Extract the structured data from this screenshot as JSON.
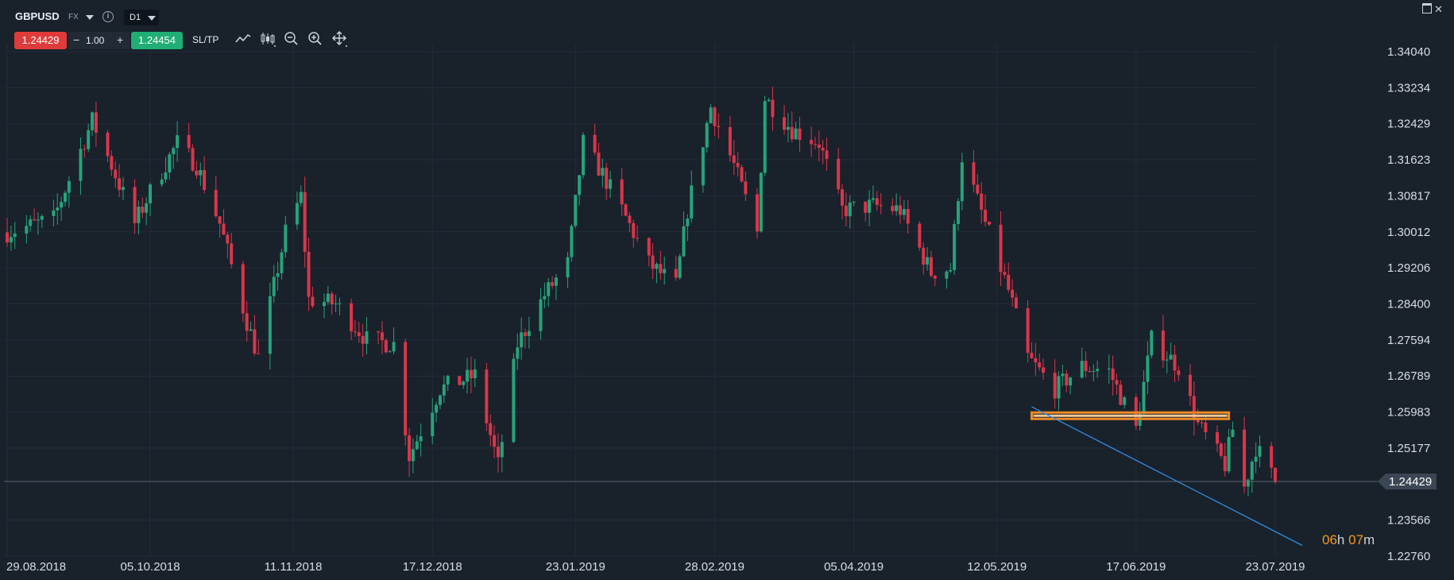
{
  "header": {
    "symbol": "GBPUSD",
    "market": "FX",
    "timeframe": "D1",
    "sell_price": "1.24429",
    "quantity": "1.00",
    "minus_label": "−",
    "plus_label": "+",
    "buy_price": "1.24454",
    "sltp_label": "SL/TP",
    "close_label": "✕"
  },
  "timer": {
    "hours": "06",
    "hours_unit": "h",
    "minutes": "07",
    "minutes_unit": "m"
  },
  "colors": {
    "up": "#26a37a",
    "down": "#d9364b",
    "background": "#19212b",
    "grid": "#232d38",
    "support": "#f08a24",
    "trendline": "#2b8fe8",
    "price_line": "#5c6773"
  },
  "chart_data": {
    "type": "candlestick",
    "symbol": "GBPUSD",
    "timeframe": "D1",
    "ylim": [
      1.2276,
      1.3404
    ],
    "y_ticks": [
      "1.34040",
      "1.33234",
      "1.32429",
      "1.31623",
      "1.30817",
      "1.30012",
      "1.29206",
      "1.28400",
      "1.27594",
      "1.26789",
      "1.25983",
      "1.25177",
      "1.24429",
      "1.23566",
      "1.22760"
    ],
    "x_ticks": [
      "29.08.2018",
      "05.10.2018",
      "11.11.2018",
      "17.12.2018",
      "23.01.2019",
      "28.02.2019",
      "05.04.2019",
      "12.05.2019",
      "17.06.2019",
      "23.07.2019"
    ],
    "x_range": [
      "2018-08-29",
      "2019-07-23"
    ],
    "current_price": "1.24429",
    "closes": [
      {
        "date": "2018-08-29",
        "close": 1.3
      },
      {
        "date": "2018-09-10",
        "close": 1.303
      },
      {
        "date": "2018-09-20",
        "close": 1.325
      },
      {
        "date": "2018-09-25",
        "close": 1.315
      },
      {
        "date": "2018-10-01",
        "close": 1.302
      },
      {
        "date": "2018-10-05",
        "close": 1.309
      },
      {
        "date": "2018-10-12",
        "close": 1.32
      },
      {
        "date": "2018-10-17",
        "close": 1.315
      },
      {
        "date": "2018-10-23",
        "close": 1.302
      },
      {
        "date": "2018-10-30",
        "close": 1.28
      },
      {
        "date": "2018-11-02",
        "close": 1.272
      },
      {
        "date": "2018-11-09",
        "close": 1.3
      },
      {
        "date": "2018-11-13",
        "close": 1.308
      },
      {
        "date": "2018-11-15",
        "close": 1.285
      },
      {
        "date": "2018-11-22",
        "close": 1.284
      },
      {
        "date": "2018-11-30",
        "close": 1.276
      },
      {
        "date": "2018-12-07",
        "close": 1.275
      },
      {
        "date": "2018-12-11",
        "close": 1.25
      },
      {
        "date": "2018-12-19",
        "close": 1.265
      },
      {
        "date": "2018-12-28",
        "close": 1.268
      },
      {
        "date": "2019-01-03",
        "close": 1.248
      },
      {
        "date": "2019-01-08",
        "close": 1.275
      },
      {
        "date": "2019-01-15",
        "close": 1.286
      },
      {
        "date": "2019-01-21",
        "close": 1.293
      },
      {
        "date": "2019-01-25",
        "close": 1.32
      },
      {
        "date": "2019-01-30",
        "close": 1.313
      },
      {
        "date": "2019-02-04",
        "close": 1.305
      },
      {
        "date": "2019-02-11",
        "close": 1.293
      },
      {
        "date": "2019-02-18",
        "close": 1.288
      },
      {
        "date": "2019-02-21",
        "close": 1.305
      },
      {
        "date": "2019-02-27",
        "close": 1.328
      },
      {
        "date": "2019-03-05",
        "close": 1.315
      },
      {
        "date": "2019-03-11",
        "close": 1.3
      },
      {
        "date": "2019-03-13",
        "close": 1.33
      },
      {
        "date": "2019-03-20",
        "close": 1.323
      },
      {
        "date": "2019-03-27",
        "close": 1.32
      },
      {
        "date": "2019-04-02",
        "close": 1.305
      },
      {
        "date": "2019-04-10",
        "close": 1.306
      },
      {
        "date": "2019-04-17",
        "close": 1.305
      },
      {
        "date": "2019-04-25",
        "close": 1.291
      },
      {
        "date": "2019-04-30",
        "close": 1.292
      },
      {
        "date": "2019-05-03",
        "close": 1.317
      },
      {
        "date": "2019-05-09",
        "close": 1.302
      },
      {
        "date": "2019-05-15",
        "close": 1.287
      },
      {
        "date": "2019-05-20",
        "close": 1.272
      },
      {
        "date": "2019-05-27",
        "close": 1.265
      },
      {
        "date": "2019-06-03",
        "close": 1.27
      },
      {
        "date": "2019-06-10",
        "close": 1.269
      },
      {
        "date": "2019-06-17",
        "close": 1.256
      },
      {
        "date": "2019-06-21",
        "close": 1.276
      },
      {
        "date": "2019-06-28",
        "close": 1.27
      },
      {
        "date": "2019-07-03",
        "close": 1.257
      },
      {
        "date": "2019-07-10",
        "close": 1.248
      },
      {
        "date": "2019-07-12",
        "close": 1.256
      },
      {
        "date": "2019-07-15",
        "close": 1.243
      },
      {
        "date": "2019-07-18",
        "close": 1.252
      },
      {
        "date": "2019-07-23",
        "close": 1.2443
      }
    ],
    "support_level": {
      "price": 1.259,
      "from": "2019-05-21",
      "to": "2019-07-11"
    },
    "trendline": {
      "from": {
        "date": "2019-05-21",
        "price": 1.261
      },
      "to": {
        "date": "2019-07-30",
        "price": 1.23
      }
    }
  }
}
